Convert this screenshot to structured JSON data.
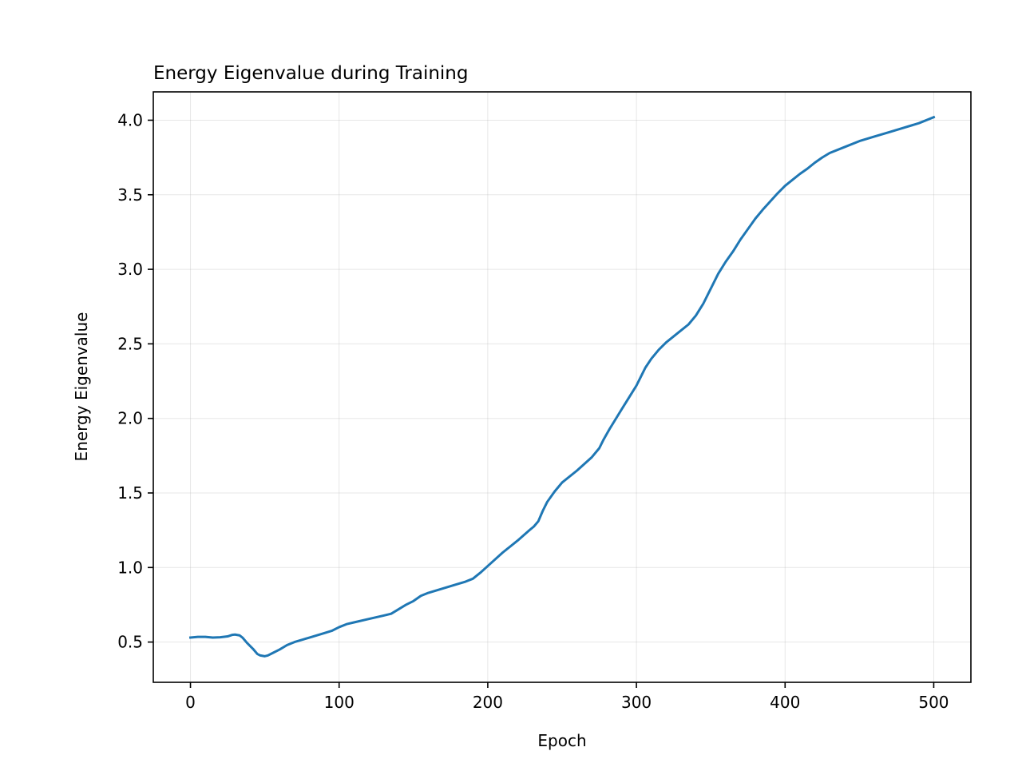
{
  "chart_data": {
    "type": "line",
    "title": "Energy Eigenvalue during Training",
    "xlabel": "Epoch",
    "ylabel": "Energy Eigenvalue",
    "xlim": [
      -25,
      525
    ],
    "ylim": [
      0.23,
      4.19
    ],
    "xticks": [
      0,
      100,
      200,
      300,
      400,
      500
    ],
    "xtick_labels": [
      "0",
      "100",
      "200",
      "300",
      "400",
      "500"
    ],
    "yticks": [
      0.5,
      1.0,
      1.5,
      2.0,
      2.5,
      3.0,
      3.5,
      4.0
    ],
    "ytick_labels": [
      "0.5",
      "1.0",
      "1.5",
      "2.0",
      "2.5",
      "3.0",
      "3.5",
      "4.0"
    ],
    "grid": true,
    "series": [
      {
        "color": "#1f77b4",
        "x": [
          0,
          5,
          10,
          15,
          20,
          25,
          28,
          30,
          33,
          35,
          38,
          42,
          45,
          47,
          50,
          52,
          55,
          60,
          65,
          70,
          80,
          90,
          95,
          100,
          105,
          110,
          120,
          130,
          135,
          140,
          145,
          150,
          155,
          160,
          170,
          180,
          185,
          190,
          195,
          200,
          210,
          220,
          228,
          231,
          234,
          237,
          240,
          245,
          250,
          260,
          270,
          275,
          278,
          282,
          290,
          295,
          300,
          303,
          306,
          310,
          315,
          320,
          325,
          330,
          335,
          340,
          345,
          350,
          355,
          360,
          365,
          370,
          375,
          380,
          385,
          390,
          395,
          400,
          405,
          410,
          415,
          420,
          425,
          430,
          440,
          450,
          460,
          470,
          480,
          490,
          500
        ],
        "y": [
          0.53,
          0.535,
          0.535,
          0.53,
          0.532,
          0.538,
          0.548,
          0.55,
          0.545,
          0.53,
          0.495,
          0.455,
          0.42,
          0.41,
          0.405,
          0.41,
          0.425,
          0.45,
          0.48,
          0.5,
          0.53,
          0.56,
          0.575,
          0.6,
          0.62,
          0.632,
          0.655,
          0.678,
          0.69,
          0.72,
          0.75,
          0.775,
          0.81,
          0.83,
          0.86,
          0.89,
          0.905,
          0.925,
          0.965,
          1.01,
          1.1,
          1.18,
          1.25,
          1.275,
          1.31,
          1.38,
          1.44,
          1.51,
          1.57,
          1.65,
          1.74,
          1.8,
          1.86,
          1.93,
          2.06,
          2.14,
          2.22,
          2.28,
          2.34,
          2.4,
          2.46,
          2.51,
          2.55,
          2.59,
          2.63,
          2.69,
          2.77,
          2.87,
          2.97,
          3.05,
          3.12,
          3.2,
          3.27,
          3.34,
          3.4,
          3.455,
          3.51,
          3.56,
          3.6,
          3.64,
          3.675,
          3.715,
          3.75,
          3.78,
          3.82,
          3.86,
          3.89,
          3.92,
          3.95,
          3.98,
          4.02
        ]
      }
    ]
  }
}
